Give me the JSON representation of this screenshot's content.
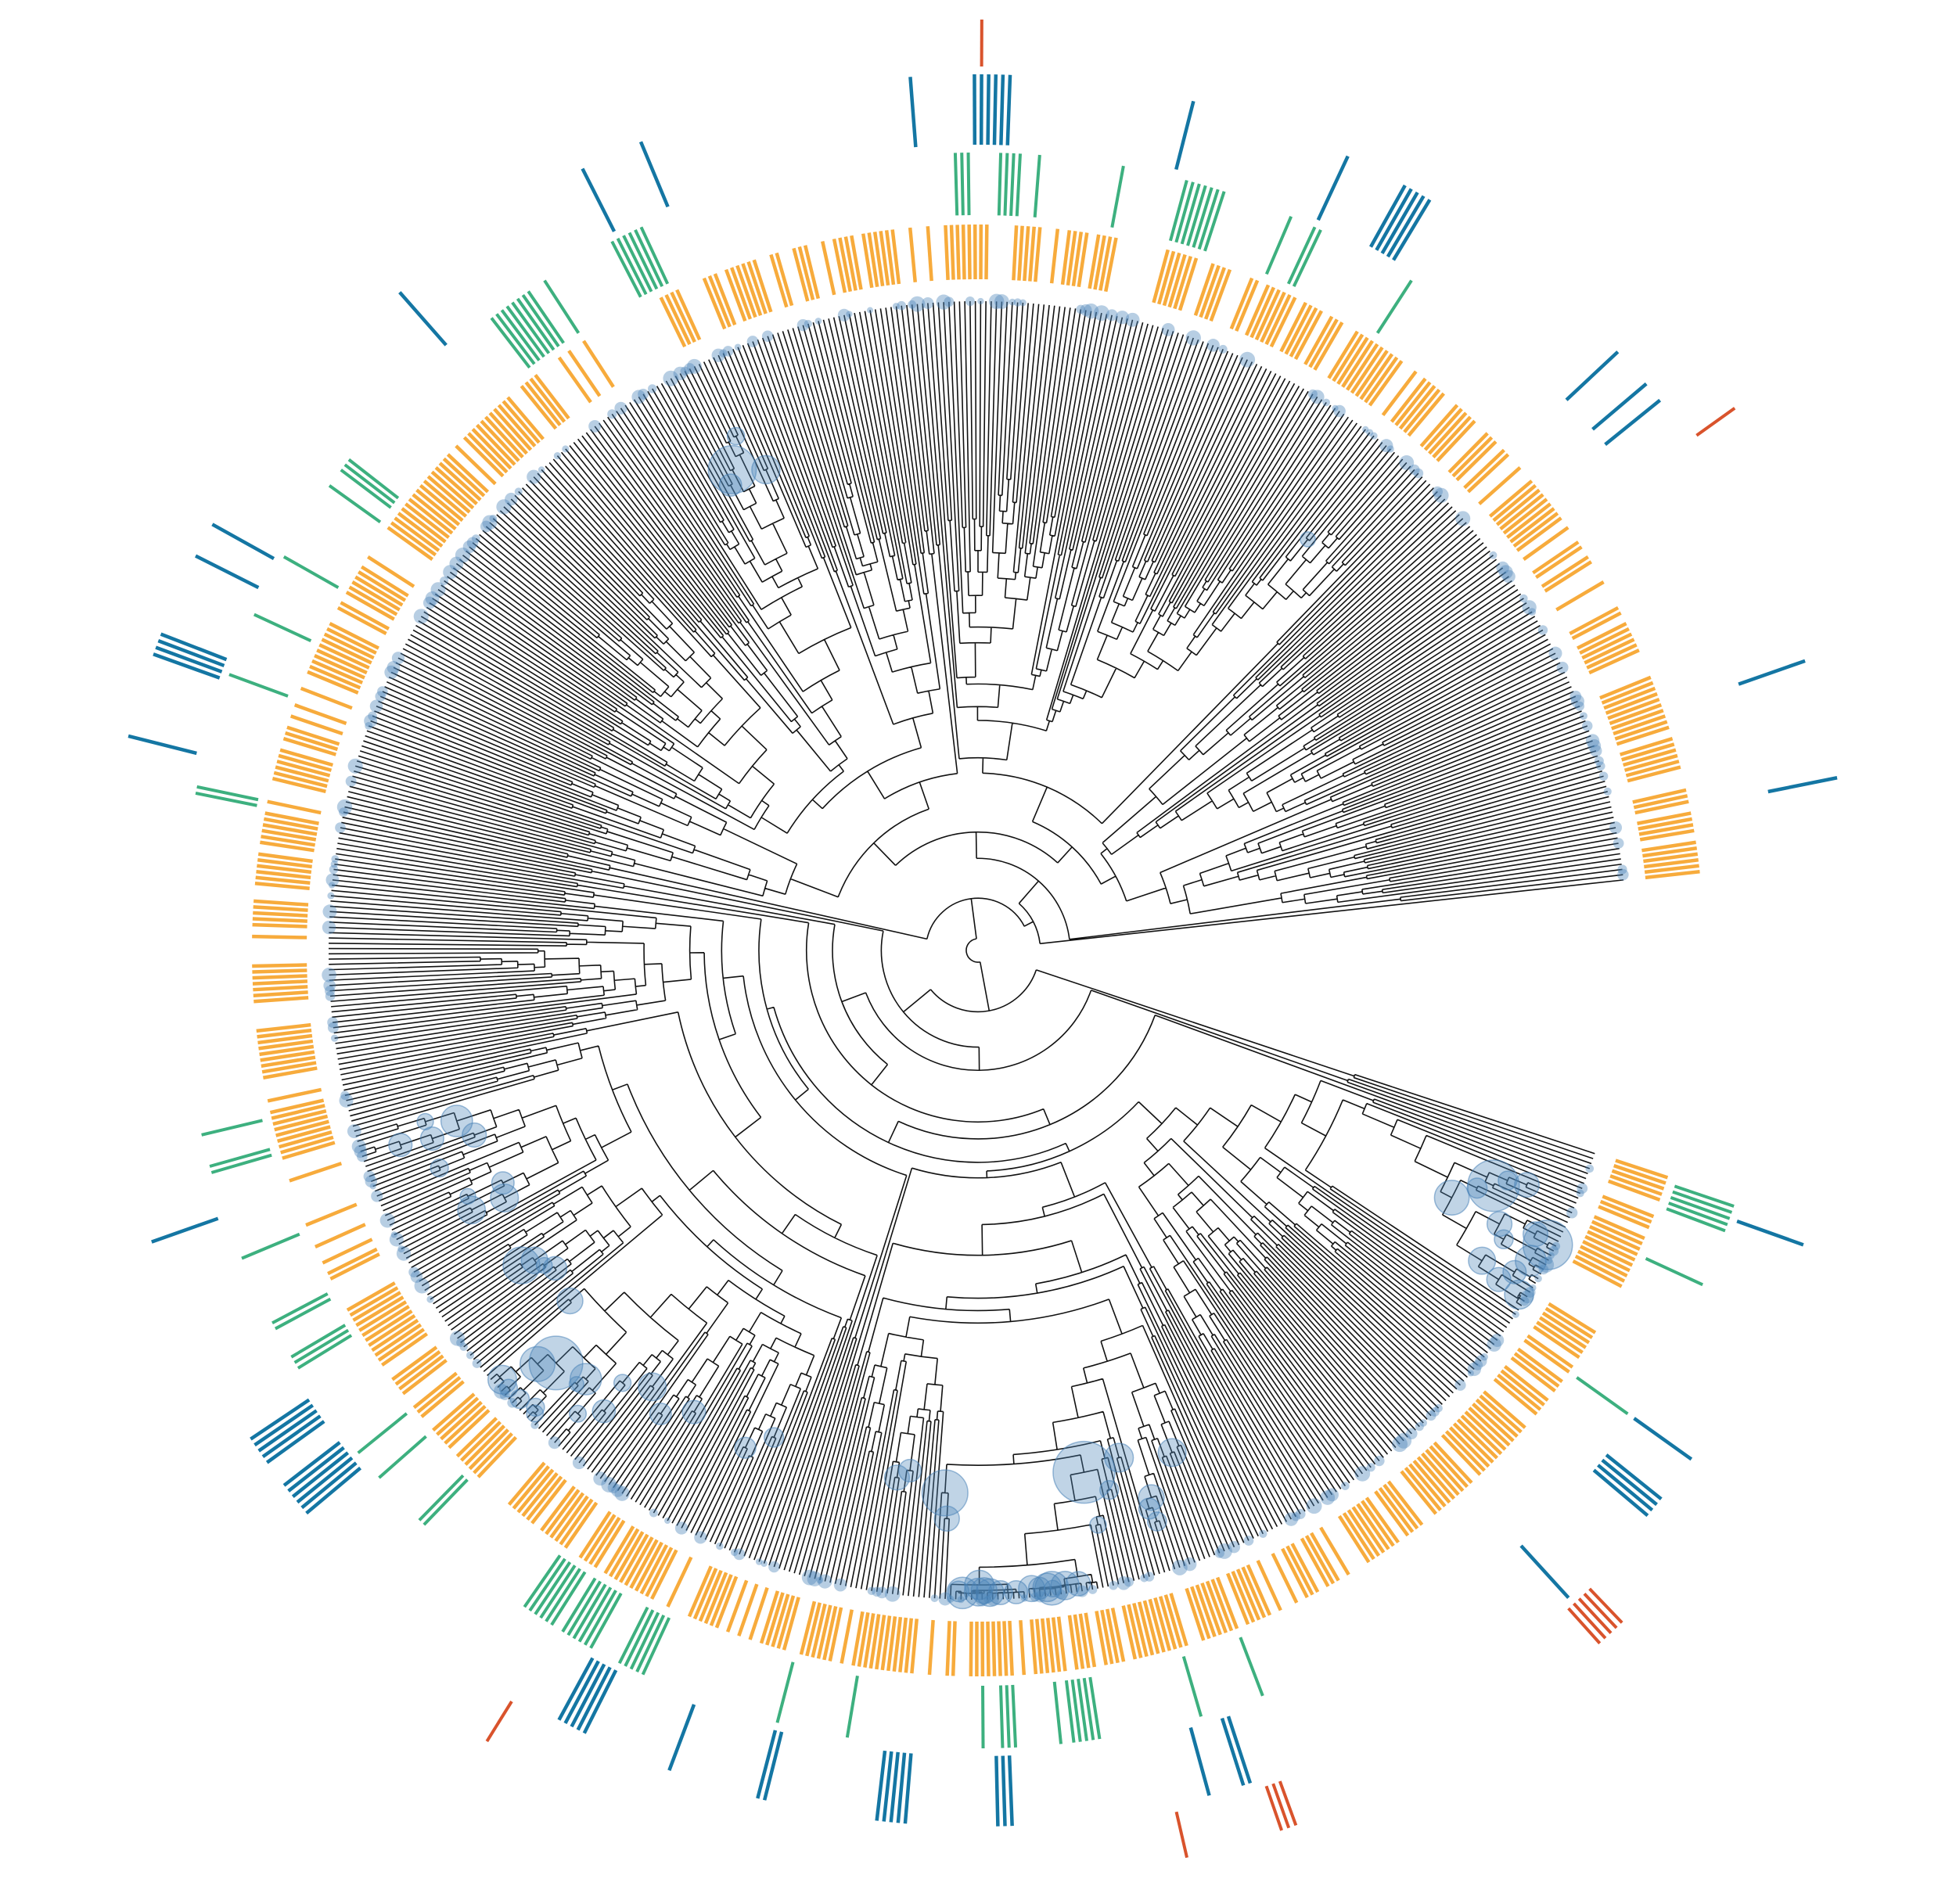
{
  "diagram": {
    "type": "circular-phylogenetic-tree",
    "colors": {
      "background": "#ffffff",
      "branch": "#111111",
      "node_marker": "#4a84b8",
      "ring_inner": "#f7ab3c",
      "ring_middle": "#3db07f",
      "ring_outer": "#1476a3",
      "ring_highlight": "#d9532c"
    },
    "structure": {
      "leaf_count": 720,
      "gap_sector": "lower-right"
    },
    "annotation_rings": [
      {
        "name": "inner",
        "color": "#f7ab3c",
        "density": 0.5
      },
      {
        "name": "middle",
        "color": "#3db07f",
        "density": 0.06
      },
      {
        "name": "outer",
        "color": "#1476a3",
        "density": 0.07
      },
      {
        "name": "highlight",
        "color": "#d9532c",
        "density": 0.01
      }
    ]
  }
}
